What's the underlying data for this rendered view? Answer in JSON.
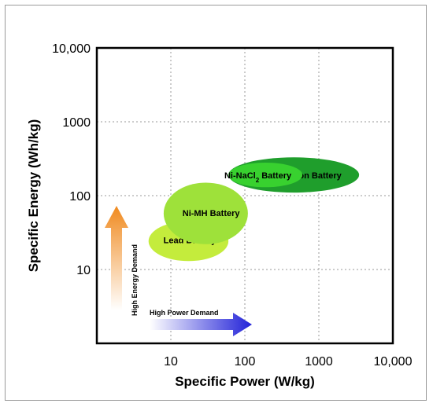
{
  "chart_data": {
    "type": "scatter",
    "xlabel": "Specific Power (W/kg)",
    "ylabel": "Specific Energy (Wh/kg)",
    "x_scale": "log",
    "y_scale": "log",
    "xlim": [
      1,
      10000
    ],
    "ylim": [
      1,
      10000
    ],
    "grid": true,
    "x_ticks": [
      {
        "value": 10,
        "label": "10"
      },
      {
        "value": 100,
        "label": "100"
      },
      {
        "value": 1000,
        "label": "1000"
      },
      {
        "value": 10000,
        "label": "10,000"
      }
    ],
    "y_ticks": [
      {
        "value": 10,
        "label": "10"
      },
      {
        "value": 100,
        "label": "100"
      },
      {
        "value": 1000,
        "label": "1000"
      },
      {
        "value": 10000,
        "label": "10,000"
      }
    ],
    "regions": [
      {
        "name": "lead",
        "label": "Lead Battery",
        "x_range": [
          5,
          60
        ],
        "y_range": [
          13,
          45
        ],
        "color": "#c4ec3c",
        "label_pos": [
          18,
          25
        ]
      },
      {
        "name": "ni-mh",
        "label": "Ni-MH Battery",
        "x_range": [
          8,
          110
        ],
        "y_range": [
          22,
          150
        ],
        "color": "#9ee13a",
        "label_pos": [
          35,
          58
        ]
      },
      {
        "name": "li-ion",
        "label": "Li-Ion Battery",
        "x_range": [
          60,
          3500
        ],
        "y_range": [
          110,
          330
        ],
        "color": "#1f9e2c",
        "label_pos": [
          850,
          190
        ]
      },
      {
        "name": "ni-nacl2",
        "label": "Ni-NaCl",
        "label_sub": "2",
        "label_suffix": " Battery",
        "x_range": [
          60,
          600
        ],
        "y_range": [
          130,
          280
        ],
        "color": "#38d12f",
        "label_pos": [
          150,
          190
        ]
      }
    ],
    "annotations": {
      "energy_demand": "High Energy Demand",
      "power_demand": "High Power Demand"
    }
  }
}
